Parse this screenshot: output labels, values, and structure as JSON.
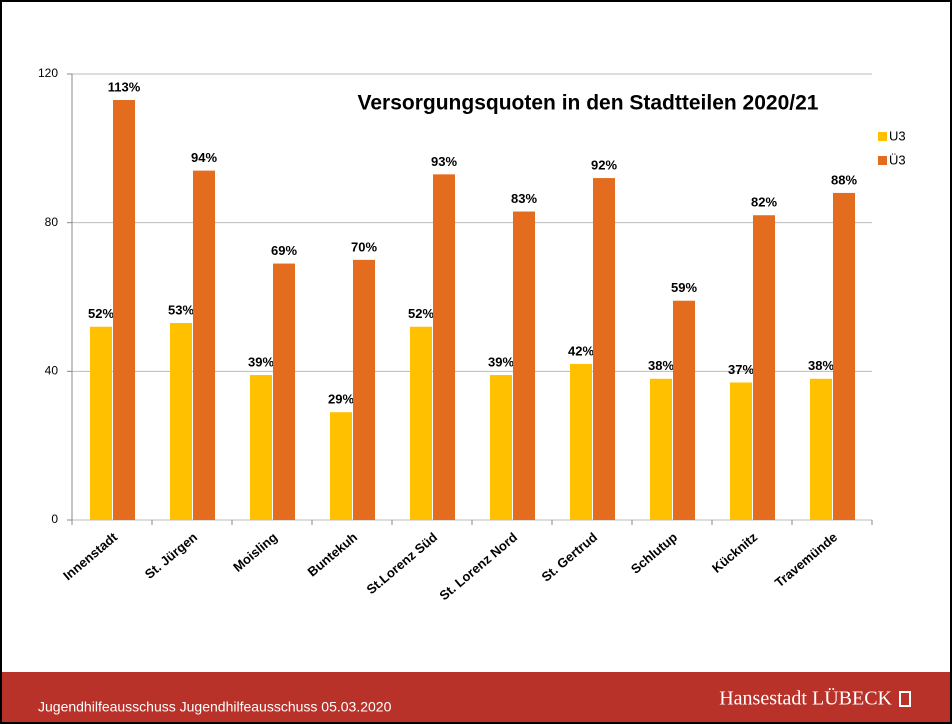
{
  "chart_data": {
    "type": "bar",
    "title": "Versorgungsquoten in den Stadtteilen 2020/21",
    "categories": [
      "Innenstadt",
      "St. Jürgen",
      "Moisling",
      "Buntekuh",
      "St.Lorenz Süd",
      "St. Lorenz Nord",
      "St. Gertrud",
      "Schlutup",
      "Kücknitz",
      "Travemünde"
    ],
    "series": [
      {
        "name": "U3",
        "color": "#ffc000",
        "values": [
          52,
          53,
          39,
          29,
          52,
          39,
          42,
          38,
          37,
          38
        ],
        "value_labels": [
          "52%",
          "53%",
          "39%",
          "29%",
          "52%",
          "39%",
          "42%",
          "38%",
          "37%",
          "38%"
        ]
      },
      {
        "name": "Ü3",
        "color": "#e46c1e",
        "values": [
          113,
          94,
          69,
          70,
          93,
          83,
          92,
          59,
          82,
          88
        ],
        "value_labels": [
          "113%",
          "94%",
          "69%",
          "70%",
          "93%",
          "83%",
          "92%",
          "59%",
          "82%",
          "88%"
        ]
      }
    ],
    "ylim": [
      0,
      120
    ],
    "yticks": [
      0,
      40,
      80,
      120
    ],
    "grid": true,
    "legend": "right"
  },
  "footer": {
    "meeting": "Jugendhilfeausschuss Jugendhilfeausschuss 05.03.2020",
    "brand": "Hansestadt LÜBECK"
  }
}
